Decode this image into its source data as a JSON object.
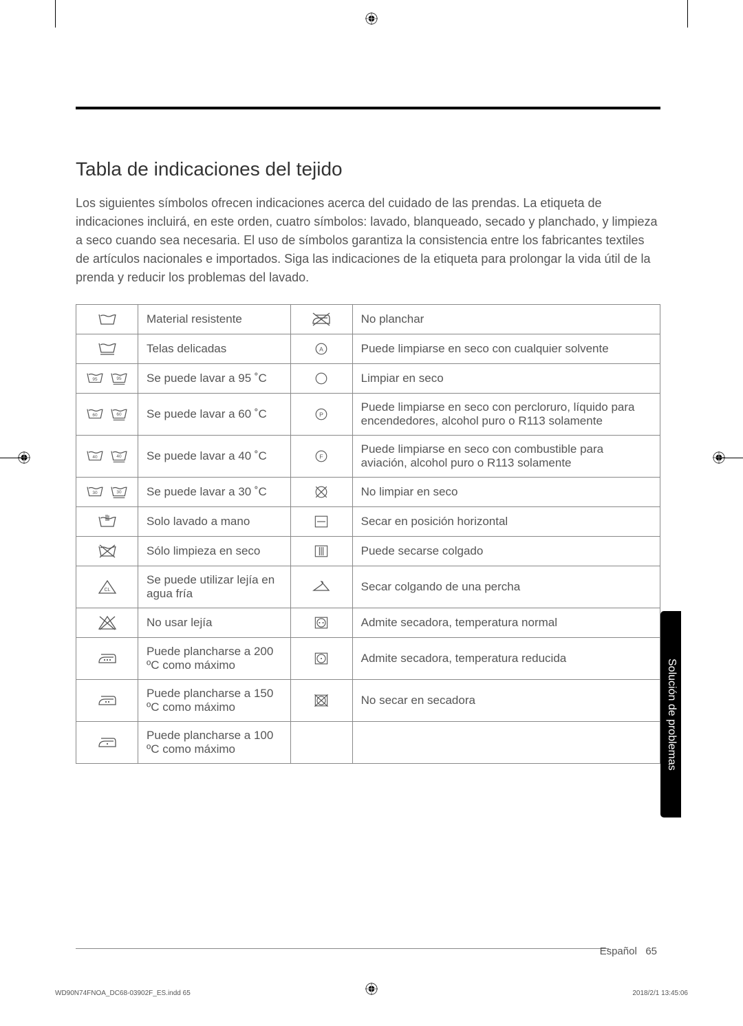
{
  "colors": {
    "text": "#555555",
    "heading": "#333333",
    "border": "#888888",
    "black": "#000000",
    "bg": "#ffffff"
  },
  "fonts": {
    "title_size": 28,
    "body_size": 18,
    "table_size": 17,
    "footer_size": 15,
    "small_size": 10
  },
  "title": "Tabla de indicaciones del tejido",
  "intro": "Los siguientes símbolos ofrecen indicaciones acerca del cuidado de las prendas. La etiqueta de indicaciones incluirá, en este orden, cuatro símbolos: lavado, blanqueado, secado y planchado, y limpieza a seco cuando sea necesaria. El uso de símbolos garantiza la consistencia entre los fabricantes textiles de artículos nacionales e importados. Siga las indicaciones de la etiqueta para prolongar la vida útil de la prenda y reducir los problemas del lavado.",
  "table_rows": [
    {
      "icon_l": "wash-tub",
      "text_l": "Material resistente",
      "icon_r": "iron-cross",
      "text_r": "No planchar"
    },
    {
      "icon_l": "wash-tub-underline",
      "text_l": "Telas delicadas",
      "icon_r": "circle-a",
      "text_r": "Puede limpiarse en seco con cualquier solvente"
    },
    {
      "icon_l": "wash-95-pair",
      "text_l": "Se puede lavar a 95 ˚C",
      "icon_r": "circle-empty",
      "text_r": "Limpiar en seco"
    },
    {
      "icon_l": "wash-60-pair",
      "text_l": "Se puede lavar a 60 ˚C",
      "icon_r": "circle-p",
      "text_r": "Puede limpiarse en seco con percloruro, líquido para encendedores, alcohol puro o R113 solamente"
    },
    {
      "icon_l": "wash-40-pair",
      "text_l": "Se puede lavar a 40 ˚C",
      "icon_r": "circle-f",
      "text_r": "Puede limpiarse en seco con combustible para aviación, alcohol puro o R113 solamente"
    },
    {
      "icon_l": "wash-30-pair",
      "text_l": "Se puede lavar a 30 ˚C",
      "icon_r": "circle-cross",
      "text_r": "No limpiar en seco"
    },
    {
      "icon_l": "hand-wash",
      "text_l": "Solo lavado a mano",
      "icon_r": "square-hline",
      "text_r": "Secar en posición horizontal"
    },
    {
      "icon_l": "wash-cross",
      "text_l": "Sólo limpieza en seco",
      "icon_r": "square-vlines",
      "text_r": "Puede secarse colgado"
    },
    {
      "icon_l": "triangle-cl",
      "text_l": "Se puede utilizar lejía en agua fría",
      "icon_r": "hanger",
      "text_r": "Secar colgando de una percha"
    },
    {
      "icon_l": "triangle-cross",
      "text_l": "No usar lejía",
      "icon_r": "square-circle-2dot",
      "text_r": "Admite secadora, temperatura normal"
    },
    {
      "icon_l": "iron-3dot",
      "text_l": "Puede plancharse a 200 ºC como máximo",
      "icon_r": "square-circle-1dot",
      "text_r": "Admite secadora, temperatura reducida"
    },
    {
      "icon_l": "iron-2dot",
      "text_l": "Puede plancharse a 150 ºC como máximo",
      "icon_r": "square-cross",
      "text_r": "No secar en secadora"
    },
    {
      "icon_l": "iron-1dot",
      "text_l": "Puede plancharse a 100 ºC como máximo",
      "icon_r": "",
      "text_r": ""
    }
  ],
  "side_tab": "Solución de problemas",
  "footer_lang": "Español",
  "footer_page": "65",
  "footer_left": "WD90N74FNOA_DC68-03902F_ES.indd   65",
  "footer_right": "2018/2/1   13:45:06"
}
